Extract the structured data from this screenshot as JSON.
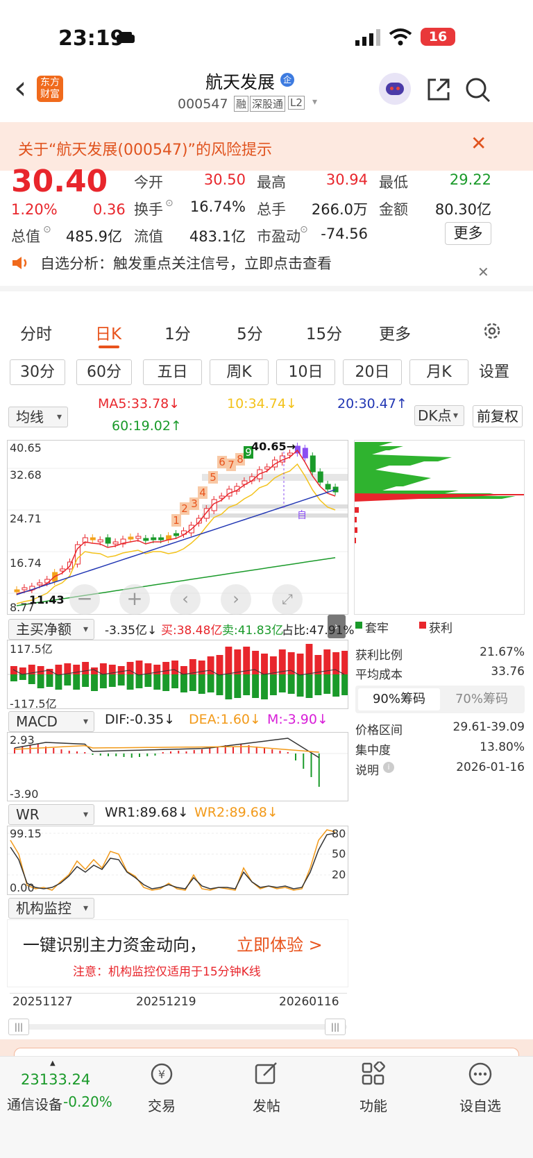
{
  "status": {
    "time": "23:19",
    "battery": "16"
  },
  "header": {
    "back": "‹",
    "logo_l1": "东方",
    "logo_l2": "财富",
    "title": "航天发展",
    "title_badge": "企",
    "code": "000547",
    "tags": [
      "融",
      "深股通",
      "L2"
    ]
  },
  "banner": {
    "text": "关于“航天发展(000547)”的风险提示"
  },
  "quote": {
    "price": "30.40",
    "pct": "1.20%",
    "chg": "0.36",
    "labels": {
      "open": "今开",
      "high": "最高",
      "low": "最低",
      "turnover": "换手",
      "volume": "总手",
      "amount": "金额",
      "mcap": "总值",
      "float": "流值",
      "pe": "市盈动"
    },
    "values": {
      "open": "30.50",
      "high": "30.94",
      "low": "29.22",
      "turnover": "16.74%",
      "volume": "266.0万",
      "amount": "80.30亿",
      "mcap": "485.9亿",
      "float": "483.1亿",
      "pe": "-74.56"
    },
    "more": "更多"
  },
  "notice": {
    "text": "自选分析：触发重点关注信号，立即点击查看"
  },
  "tabs": [
    "分时",
    "日K",
    "1分",
    "5分",
    "15分",
    "更多"
  ],
  "periods": [
    "30分",
    "60分",
    "五日",
    "周K",
    "10日",
    "20日",
    "月K",
    "设置"
  ],
  "ma": {
    "select": "均线",
    "ma5": "MA5:33.78↓",
    "ma10": "10:34.74↓",
    "ma20": "20:30.47↑",
    "ma60": "60:19.02↑",
    "dk": "DK点",
    "fq": "前复权"
  },
  "kchart": {
    "y_labels": [
      "40.65",
      "32.68",
      "24.71",
      "16.74",
      "8.77"
    ],
    "high_note": "40.65→",
    "low_note": "11.43",
    "mark": "自",
    "nums": [
      "1",
      "2",
      "3",
      "4",
      "5",
      "6",
      "7",
      "8",
      "9"
    ]
  },
  "flow": {
    "select": "主买净额",
    "net": "-3.35亿↓",
    "buy": "买:38.48亿",
    "sell": "卖:41.83亿",
    "ratio": "占比:47.91%",
    "top": "117.5亿",
    "bottom": "-117.5亿"
  },
  "macd": {
    "select": "MACD",
    "dif": "DIF:-0.35↓",
    "dea": "DEA:1.60↓",
    "m": "M:-3.90↓",
    "top": "2.93",
    "bottom": "-3.90"
  },
  "wr": {
    "select": "WR",
    "wr1": "WR1:89.68↓",
    "wr2": "WR2:89.68↓",
    "top": "99.15",
    "bottom": "0.00",
    "r80": "80",
    "r50": "50",
    "r20": "20"
  },
  "inst": {
    "select": "机构监控",
    "cta": "一键识别主力资金动向，",
    "cta2": "立即体验 >",
    "note": "注意：机构监控仅适用于15分钟K线"
  },
  "dates": [
    "20251127",
    "20251219",
    "20260116"
  ],
  "chips": {
    "legend_trap": "套牢",
    "legend_profit": "获利",
    "rows": [
      [
        "获利比例",
        "21.67%"
      ],
      [
        "平均成本",
        "33.76"
      ]
    ],
    "tab90": "90%筹码",
    "tab70": "70%筹码",
    "rows2": [
      [
        "价格区间",
        "29.61-39.09"
      ],
      [
        "集中度",
        "13.80%"
      ],
      [
        "说明",
        "2026-01-16"
      ]
    ]
  },
  "bottom": {
    "index_value": "23133.24",
    "sector": "通信设备",
    "sector_pct": "-0.20%",
    "items": [
      "交易",
      "发帖",
      "功能",
      "设自选"
    ]
  }
}
